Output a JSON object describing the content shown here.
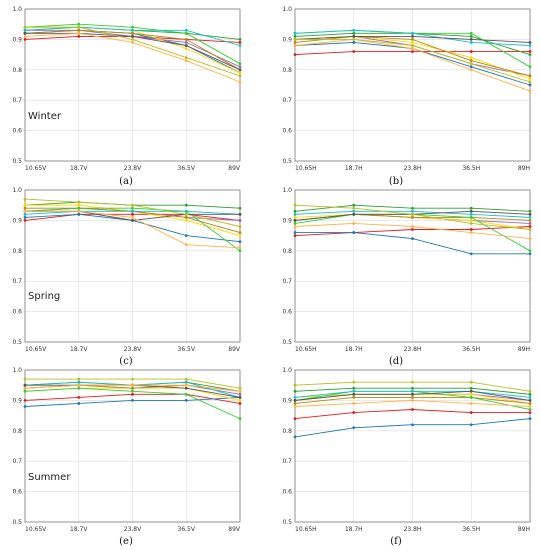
{
  "chart_data": [
    {
      "panel_label": "(a)",
      "season": "Winter",
      "type": "line",
      "categories": [
        "10.65V",
        "18.7V",
        "23.8V",
        "36.5V",
        "89V"
      ],
      "ylim": [
        0.5,
        1.0
      ],
      "yticks": [
        "0.5",
        "0.6",
        "0.7",
        "0.8",
        "0.9",
        "1.0"
      ],
      "grid": true,
      "series": [
        {
          "color": "#e41a1c",
          "values": [
            0.9,
            0.91,
            0.91,
            0.9,
            0.89
          ]
        },
        {
          "color": "#1f77b4",
          "values": [
            0.92,
            0.93,
            0.92,
            0.88,
            0.79
          ]
        },
        {
          "color": "#2ca02c",
          "values": [
            0.93,
            0.94,
            0.93,
            0.92,
            0.9
          ]
        },
        {
          "color": "#9467bd",
          "values": [
            0.93,
            0.93,
            0.91,
            0.89,
            0.81
          ]
        },
        {
          "color": "#ffd700",
          "values": [
            0.94,
            0.94,
            0.93,
            0.87,
            0.79
          ]
        },
        {
          "color": "#b8860b",
          "values": [
            0.92,
            0.93,
            0.92,
            0.9,
            0.8
          ]
        },
        {
          "color": "#32cd32",
          "values": [
            0.94,
            0.95,
            0.94,
            0.92,
            0.82
          ]
        },
        {
          "color": "#17becf",
          "values": [
            0.93,
            0.94,
            0.93,
            0.93,
            0.88
          ]
        },
        {
          "color": "#555555",
          "values": [
            0.92,
            0.92,
            0.91,
            0.88,
            0.8
          ]
        },
        {
          "color": "#ffb347",
          "values": [
            0.91,
            0.92,
            0.89,
            0.83,
            0.76
          ]
        },
        {
          "color": "#bcbd22",
          "values": [
            0.94,
            0.94,
            0.9,
            0.84,
            0.78
          ]
        }
      ]
    },
    {
      "panel_label": "(b)",
      "season": "",
      "type": "line",
      "categories": [
        "10.65H",
        "18.7H",
        "23.8H",
        "36.5H",
        "89H"
      ],
      "ylim": [
        0.5,
        1.0
      ],
      "yticks": [
        "0.5",
        "0.6",
        "0.7",
        "0.8",
        "0.9",
        "1.0"
      ],
      "grid": true,
      "series": [
        {
          "color": "#e41a1c",
          "values": [
            0.85,
            0.86,
            0.86,
            0.86,
            0.86
          ]
        },
        {
          "color": "#1f77b4",
          "values": [
            0.88,
            0.89,
            0.87,
            0.81,
            0.75
          ]
        },
        {
          "color": "#2ca02c",
          "values": [
            0.91,
            0.92,
            0.92,
            0.91,
            0.85
          ]
        },
        {
          "color": "#9467bd",
          "values": [
            0.9,
            0.91,
            0.88,
            0.82,
            0.78
          ]
        },
        {
          "color": "#ffd700",
          "values": [
            0.9,
            0.91,
            0.89,
            0.84,
            0.77
          ]
        },
        {
          "color": "#b8860b",
          "values": [
            0.89,
            0.91,
            0.9,
            0.83,
            0.78
          ]
        },
        {
          "color": "#32cd32",
          "values": [
            0.92,
            0.93,
            0.92,
            0.92,
            0.81
          ]
        },
        {
          "color": "#17becf",
          "values": [
            0.92,
            0.93,
            0.92,
            0.89,
            0.88
          ]
        },
        {
          "color": "#555555",
          "values": [
            0.9,
            0.91,
            0.91,
            0.9,
            0.89
          ]
        },
        {
          "color": "#ffb347",
          "values": [
            0.88,
            0.9,
            0.87,
            0.8,
            0.73
          ]
        },
        {
          "color": "#bcbd22",
          "values": [
            0.9,
            0.9,
            0.88,
            0.82,
            0.76
          ]
        }
      ]
    },
    {
      "panel_label": "(c)",
      "season": "Spring",
      "type": "line",
      "categories": [
        "10.65V",
        "18.7V",
        "23.8V",
        "36.5V",
        "89V"
      ],
      "ylim": [
        0.5,
        1.0
      ],
      "yticks": [
        "0.5",
        "0.6",
        "0.7",
        "0.8",
        "0.9",
        "1.0"
      ],
      "grid": true,
      "series": [
        {
          "color": "#e41a1c",
          "values": [
            0.9,
            0.92,
            0.92,
            0.92,
            0.9
          ]
        },
        {
          "color": "#1f77b4",
          "values": [
            0.91,
            0.92,
            0.9,
            0.85,
            0.83
          ]
        },
        {
          "color": "#2ca02c",
          "values": [
            0.95,
            0.96,
            0.95,
            0.95,
            0.94
          ]
        },
        {
          "color": "#9467bd",
          "values": [
            0.93,
            0.94,
            0.93,
            0.91,
            0.9
          ]
        },
        {
          "color": "#ffd700",
          "values": [
            0.95,
            0.95,
            0.93,
            0.9,
            0.85
          ]
        },
        {
          "color": "#b8860b",
          "values": [
            0.94,
            0.94,
            0.93,
            0.91,
            0.86
          ]
        },
        {
          "color": "#32cd32",
          "values": [
            0.93,
            0.94,
            0.94,
            0.93,
            0.8
          ]
        },
        {
          "color": "#17becf",
          "values": [
            0.92,
            0.93,
            0.93,
            0.93,
            0.92
          ]
        },
        {
          "color": "#555555",
          "values": [
            0.93,
            0.93,
            0.9,
            0.92,
            0.92
          ]
        },
        {
          "color": "#ffb347",
          "values": [
            0.93,
            0.93,
            0.91,
            0.82,
            0.81
          ]
        },
        {
          "color": "#bcbd22",
          "values": [
            0.97,
            0.96,
            0.95,
            0.92,
            0.88
          ]
        }
      ]
    },
    {
      "panel_label": "(d)",
      "season": "",
      "type": "line",
      "categories": [
        "10.65H",
        "18.7H",
        "23.8H",
        "36.5H",
        "89H"
      ],
      "ylim": [
        0.5,
        1.0
      ],
      "yticks": [
        "0.5",
        "0.6",
        "0.7",
        "0.8",
        "0.9",
        "1.0"
      ],
      "grid": true,
      "series": [
        {
          "color": "#e41a1c",
          "values": [
            0.85,
            0.86,
            0.87,
            0.87,
            0.88
          ]
        },
        {
          "color": "#1f77b4",
          "values": [
            0.86,
            0.86,
            0.84,
            0.79,
            0.79
          ]
        },
        {
          "color": "#2ca02c",
          "values": [
            0.93,
            0.95,
            0.94,
            0.94,
            0.93
          ]
        },
        {
          "color": "#9467bd",
          "values": [
            0.9,
            0.92,
            0.91,
            0.9,
            0.89
          ]
        },
        {
          "color": "#ffd700",
          "values": [
            0.91,
            0.92,
            0.91,
            0.9,
            0.87
          ]
        },
        {
          "color": "#b8860b",
          "values": [
            0.9,
            0.92,
            0.91,
            0.91,
            0.9
          ]
        },
        {
          "color": "#32cd32",
          "values": [
            0.89,
            0.92,
            0.92,
            0.91,
            0.8
          ]
        },
        {
          "color": "#17becf",
          "values": [
            0.92,
            0.93,
            0.93,
            0.92,
            0.91
          ]
        },
        {
          "color": "#555555",
          "values": [
            0.9,
            0.92,
            0.92,
            0.93,
            0.92
          ]
        },
        {
          "color": "#ffb347",
          "values": [
            0.88,
            0.89,
            0.88,
            0.86,
            0.84
          ]
        },
        {
          "color": "#bcbd22",
          "values": [
            0.95,
            0.94,
            0.92,
            0.89,
            0.87
          ]
        }
      ]
    },
    {
      "panel_label": "(e)",
      "season": "Summer",
      "type": "line",
      "categories": [
        "10.65V",
        "18.7V",
        "23.8V",
        "36.5V",
        "89V"
      ],
      "ylim": [
        0.5,
        1.0
      ],
      "yticks": [
        "0.5",
        "0.6",
        "0.7",
        "0.8",
        "0.9",
        "1.0"
      ],
      "grid": true,
      "series": [
        {
          "color": "#e41a1c",
          "values": [
            0.9,
            0.91,
            0.92,
            0.92,
            0.89
          ]
        },
        {
          "color": "#1f77b4",
          "values": [
            0.88,
            0.89,
            0.9,
            0.9,
            0.91
          ]
        },
        {
          "color": "#2ca02c",
          "values": [
            0.95,
            0.96,
            0.95,
            0.96,
            0.93
          ]
        },
        {
          "color": "#9467bd",
          "values": [
            0.94,
            0.95,
            0.94,
            0.95,
            0.92
          ]
        },
        {
          "color": "#ffd700",
          "values": [
            0.93,
            0.94,
            0.94,
            0.94,
            0.9
          ]
        },
        {
          "color": "#b8860b",
          "values": [
            0.94,
            0.95,
            0.94,
            0.95,
            0.93
          ]
        },
        {
          "color": "#32cd32",
          "values": [
            0.93,
            0.94,
            0.93,
            0.92,
            0.84
          ]
        },
        {
          "color": "#17becf",
          "values": [
            0.95,
            0.96,
            0.95,
            0.96,
            0.91
          ]
        },
        {
          "color": "#555555",
          "values": [
            0.95,
            0.95,
            0.95,
            0.94,
            0.91
          ]
        },
        {
          "color": "#ffb347",
          "values": [
            0.94,
            0.95,
            0.95,
            0.95,
            0.93
          ]
        },
        {
          "color": "#bcbd22",
          "values": [
            0.97,
            0.97,
            0.97,
            0.97,
            0.94
          ]
        }
      ]
    },
    {
      "panel_label": "(f)",
      "season": "",
      "type": "line",
      "categories": [
        "10.65H",
        "18.7H",
        "23.8H",
        "36.5H",
        "89H"
      ],
      "ylim": [
        0.5,
        1.0
      ],
      "yticks": [
        "0.5",
        "0.6",
        "0.7",
        "0.8",
        "0.9",
        "1.0"
      ],
      "grid": true,
      "series": [
        {
          "color": "#e41a1c",
          "values": [
            0.84,
            0.86,
            0.87,
            0.86,
            0.86
          ]
        },
        {
          "color": "#1f77b4",
          "values": [
            0.78,
            0.81,
            0.82,
            0.82,
            0.84
          ]
        },
        {
          "color": "#2ca02c",
          "values": [
            0.93,
            0.94,
            0.94,
            0.94,
            0.92
          ]
        },
        {
          "color": "#9467bd",
          "values": [
            0.9,
            0.92,
            0.92,
            0.92,
            0.9
          ]
        },
        {
          "color": "#ffd700",
          "values": [
            0.91,
            0.92,
            0.92,
            0.92,
            0.89
          ]
        },
        {
          "color": "#b8860b",
          "values": [
            0.89,
            0.91,
            0.91,
            0.91,
            0.89
          ]
        },
        {
          "color": "#32cd32",
          "values": [
            0.9,
            0.93,
            0.93,
            0.91,
            0.87
          ]
        },
        {
          "color": "#17becf",
          "values": [
            0.91,
            0.93,
            0.93,
            0.93,
            0.91
          ]
        },
        {
          "color": "#555555",
          "values": [
            0.9,
            0.92,
            0.92,
            0.93,
            0.9
          ]
        },
        {
          "color": "#ffb347",
          "values": [
            0.88,
            0.89,
            0.9,
            0.89,
            0.88
          ]
        },
        {
          "color": "#bcbd22",
          "values": [
            0.95,
            0.96,
            0.96,
            0.96,
            0.93
          ]
        }
      ]
    }
  ]
}
